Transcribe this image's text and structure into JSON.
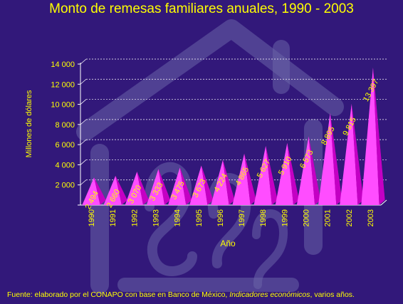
{
  "chart_data": {
    "type": "bar",
    "title": "Monto de remesas familiares anuales, 1990 - 2003",
    "xlabel": "Año",
    "ylabel": "Millones de dólares",
    "categories": [
      "1990",
      "1991",
      "1992",
      "1993",
      "1994",
      "1995",
      "1996",
      "1997",
      "1998",
      "1999",
      "2000",
      "2001",
      "2002",
      "2003"
    ],
    "values": [
      2494,
      2660,
      3070,
      3333,
      3475,
      3673,
      4224,
      4865,
      5627,
      5910,
      6573,
      8895,
      9815,
      13397
    ],
    "data_labels": [
      "2 494",
      "2 660",
      "3 070",
      "3 333",
      "3 475",
      "3 673",
      "4 224",
      "4 865",
      "5 627",
      "5 910",
      "6 573",
      "8 895",
      "9 815",
      "13 397"
    ],
    "yticks": [
      0,
      2000,
      4000,
      6000,
      8000,
      10000,
      12000,
      14000
    ],
    "ytick_labels": [
      "",
      "2 000",
      "4 000",
      "6 000",
      "8 000",
      "10 000",
      "12 000",
      "14 000"
    ],
    "ylim": [
      0,
      14000
    ],
    "grid": true,
    "colors": {
      "background": "#32187a",
      "bar_light": "#ff4dff",
      "bar_dark": "#9b009b",
      "text": "#ffff00",
      "axis": "#ffffff"
    }
  },
  "source": {
    "prefix": "Fuente: elaborado por el CONAPO con base en Banco de México, ",
    "italic": "Indicadores económicos",
    "suffix": ", varios años."
  }
}
